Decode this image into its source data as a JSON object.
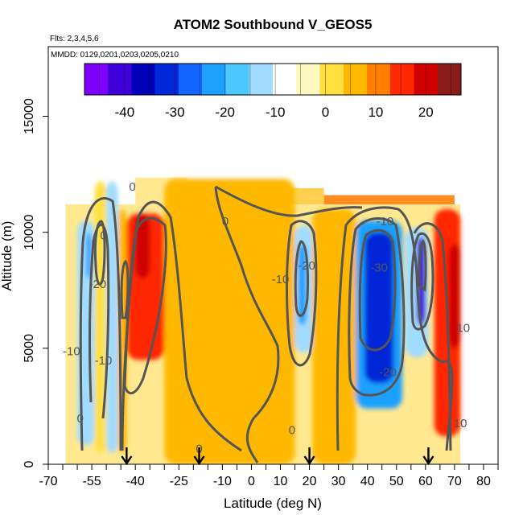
{
  "chart_data": {
    "type": "heatmap",
    "title": "ATOM2 Southbound V_GEOS5",
    "flights_text": "Flts: 2,3,4,5,6",
    "dates_text": "MMDD: 0129,0201,0203,0205,0210",
    "xlabel": "Latitude (deg N)",
    "ylabel": "Altitude (m)",
    "xlim": [
      -70,
      85
    ],
    "ylim": [
      0,
      18000
    ],
    "x_ticks": [
      -70,
      -55,
      -40,
      -25,
      -10,
      0,
      10,
      20,
      30,
      40,
      50,
      60,
      70,
      80
    ],
    "x_tick_labels": [
      "-70",
      "-55",
      "-40",
      "-25",
      "-10",
      "0",
      "10",
      "20",
      "30",
      "40",
      "50",
      "60",
      "70",
      "80"
    ],
    "x_minor_ticks": [
      -65,
      -60,
      -50,
      -45,
      -35,
      -30,
      -20,
      -15,
      -5,
      5,
      15,
      25,
      35,
      45,
      55,
      65,
      75,
      85
    ],
    "y_ticks": [
      0,
      5000,
      10000,
      15000
    ],
    "y_tick_labels": [
      "0",
      "5000",
      "10000",
      "15000"
    ],
    "colorbar": {
      "range": [
        -48,
        27
      ],
      "ticks": [
        -40,
        -30,
        -20,
        -10,
        0,
        10,
        20
      ],
      "tick_labels": [
        "-40",
        "-30",
        "-20",
        "-10",
        "0",
        "10",
        "20"
      ],
      "colors": [
        "#7f00ff",
        "#4000d8",
        "#0000b8",
        "#0028d8",
        "#1464ff",
        "#1ea0ff",
        "#4cc8ff",
        "#a0dcff",
        "#ffffff",
        "#fff8c0",
        "#ffe040",
        "#ffb800",
        "#ff8000",
        "#ff2800",
        "#d00000",
        "#8b1a1a"
      ]
    },
    "grid": false,
    "field": [
      {
        "lat_range": [
          -60,
          -54
        ],
        "alt_range": [
          800,
          10500
        ],
        "value": -14
      },
      {
        "lat_range": [
          -57,
          -55
        ],
        "alt_range": [
          8000,
          10000
        ],
        "value": -24
      },
      {
        "lat_range": [
          -54,
          -50
        ],
        "alt_range": [
          500,
          12200
        ],
        "value": 3
      },
      {
        "lat_range": [
          -50,
          -46
        ],
        "alt_range": [
          500,
          12200
        ],
        "value": -13
      },
      {
        "lat_range": [
          -46,
          -43
        ],
        "alt_range": [
          500,
          11000
        ],
        "value": 4
      },
      {
        "lat_range": [
          -43,
          -30
        ],
        "alt_range": [
          4500,
          10800
        ],
        "value": 14
      },
      {
        "lat_range": [
          -40,
          -35
        ],
        "alt_range": [
          8000,
          10800
        ],
        "value": 20
      },
      {
        "lat_range": [
          -30,
          15
        ],
        "alt_range": [
          0,
          12300
        ],
        "value": 4
      },
      {
        "lat_range": [
          15,
          21
        ],
        "alt_range": [
          4800,
          10300
        ],
        "value": -15
      },
      {
        "lat_range": [
          16,
          19
        ],
        "alt_range": [
          6000,
          9500
        ],
        "value": -22
      },
      {
        "lat_range": [
          21,
          36
        ],
        "alt_range": [
          0,
          11000
        ],
        "value": 5
      },
      {
        "lat_range": [
          36,
          52
        ],
        "alt_range": [
          2400,
          10500
        ],
        "value": -24
      },
      {
        "lat_range": [
          39,
          49
        ],
        "alt_range": [
          3500,
          10000
        ],
        "value": -32
      },
      {
        "lat_range": [
          53,
          61
        ],
        "alt_range": [
          4600,
          10200
        ],
        "value": -14
      },
      {
        "lat_range": [
          57,
          60
        ],
        "alt_range": [
          6000,
          9800
        ],
        "value": -40
      },
      {
        "lat_range": [
          63,
          72
        ],
        "alt_range": [
          1200,
          11000
        ],
        "value": 15
      },
      {
        "lat_range": [
          68,
          72
        ],
        "alt_range": [
          5000,
          9500
        ],
        "value": 20
      }
    ],
    "contour_labels": [
      {
        "text": "0",
        "x": -41,
        "y": 11800
      },
      {
        "text": "0",
        "x": -9,
        "y": 10300
      },
      {
        "text": "-10",
        "x": 46,
        "y": 10300
      },
      {
        "text": "0",
        "x": -51,
        "y": 9700
      },
      {
        "text": "-20",
        "x": 19,
        "y": 8400
      },
      {
        "text": "-10",
        "x": 10,
        "y": 7800
      },
      {
        "text": "-30",
        "x": 44,
        "y": 8300
      },
      {
        "text": "-20",
        "x": -53,
        "y": 7600
      },
      {
        "text": "-10",
        "x": -62,
        "y": 4700
      },
      {
        "text": "-10",
        "x": -51,
        "y": 4300
      },
      {
        "text": "-20",
        "x": 47,
        "y": 3800
      },
      {
        "text": "10",
        "x": 73,
        "y": 5700
      },
      {
        "text": "0",
        "x": -59,
        "y": 1800
      },
      {
        "text": "0",
        "x": 14,
        "y": 1300
      },
      {
        "text": "10",
        "x": 72,
        "y": 1600
      },
      {
        "text": "0",
        "x": -18,
        "y": 500
      }
    ],
    "flight_arrows_lat": [
      -43,
      -18,
      20,
      61
    ]
  }
}
